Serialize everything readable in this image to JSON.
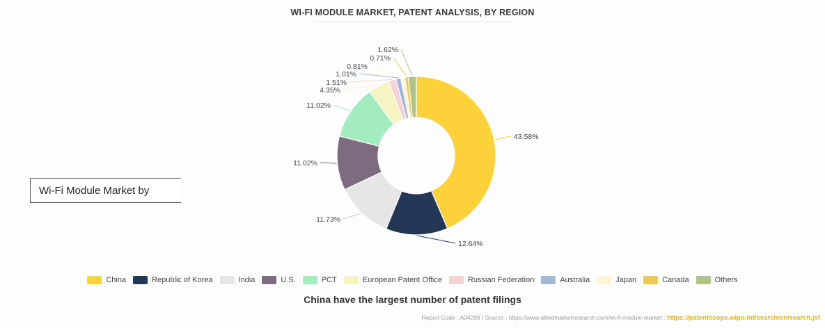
{
  "page": {
    "title": "WI-FI MODULE MARKET, PATENT ANALYSIS, BY REGION",
    "side_label": "Wi-Fi Module Market by",
    "subtitle": "China have the largest number of patent filings",
    "footer_report": "Report Code : A04299  |  Source : https://www.alliedmarketresearch.com/wi-fi-module-market :",
    "footer_link": "https://patentscope.wipo.int/search/en/search.jsf"
  },
  "chart_data": {
    "type": "pie",
    "donut": true,
    "title": "WI-FI MODULE MARKET, PATENT ANALYSIS, BY REGION",
    "legend_position": "bottom",
    "series": [
      {
        "name": "China",
        "value": 43.58,
        "label": "43.58%",
        "color": "#fdd13a"
      },
      {
        "name": "Republic of Korea",
        "value": 12.64,
        "label": "12.64%",
        "color": "#243757"
      },
      {
        "name": "India",
        "value": 11.73,
        "label": "11.73%",
        "color": "#e6e6e6"
      },
      {
        "name": "U.S.",
        "value": 11.02,
        "label": "11.02%",
        "color": "#7d6b80"
      },
      {
        "name": "PCT",
        "value": 11.02,
        "label": "11.02%",
        "color": "#a3ecc0"
      },
      {
        "name": "European Patent Office",
        "value": 4.35,
        "label": "4.35%",
        "color": "#f7f4c4"
      },
      {
        "name": "Russian Federation",
        "value": 1.51,
        "label": "1.51%",
        "color": "#f5d3d5"
      },
      {
        "name": "Australia",
        "value": 1.01,
        "label": "1.01%",
        "color": "#a3b8d6"
      },
      {
        "name": "Japan",
        "value": 0.81,
        "label": "0.81%",
        "color": "#fdf5d3"
      },
      {
        "name": "Canada",
        "value": 0.71,
        "label": "0.71%",
        "color": "#f2c75a"
      },
      {
        "name": "Others",
        "value": 1.62,
        "label": "1.62%",
        "color": "#afc488"
      }
    ]
  }
}
